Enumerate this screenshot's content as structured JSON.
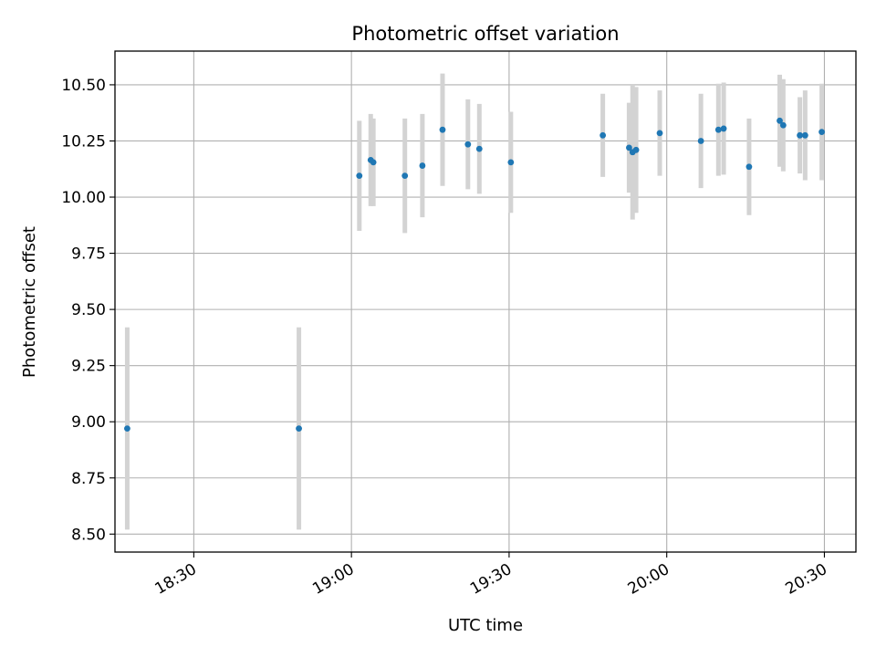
{
  "chart_data": {
    "type": "scatter",
    "title": "Photometric offset variation",
    "xlabel": "UTC time",
    "ylabel": "Photometric offset",
    "x_ticks": [
      "18:30",
      "19:00",
      "19:30",
      "20:00",
      "20:30"
    ],
    "y_ticks": [
      "8.50",
      "8.75",
      "9.00",
      "9.25",
      "9.50",
      "9.75",
      "10.00",
      "10.25",
      "10.50"
    ],
    "grid": true,
    "xlim": [
      "18:15",
      "20:36"
    ],
    "ylim": [
      8.42,
      10.65
    ],
    "marker_color": "#1f77b4",
    "errorbar_color": "#d3d3d3",
    "points": [
      {
        "x": "18:17:20",
        "y": 8.97,
        "err": 0.45
      },
      {
        "x": "18:50:00",
        "y": 8.97,
        "err": 0.45
      },
      {
        "x": "19:01:30",
        "y": 10.095,
        "err": 0.245
      },
      {
        "x": "19:03:40",
        "y": 10.165,
        "err": 0.205
      },
      {
        "x": "19:04:10",
        "y": 10.155,
        "err": 0.195
      },
      {
        "x": "19:10:10",
        "y": 10.095,
        "err": 0.255
      },
      {
        "x": "19:13:30",
        "y": 10.14,
        "err": 0.23
      },
      {
        "x": "19:17:20",
        "y": 10.3,
        "err": 0.25
      },
      {
        "x": "19:22:10",
        "y": 10.235,
        "err": 0.2
      },
      {
        "x": "19:24:20",
        "y": 10.215,
        "err": 0.2
      },
      {
        "x": "19:30:20",
        "y": 10.155,
        "err": 0.225
      },
      {
        "x": "19:47:50",
        "y": 10.275,
        "err": 0.185
      },
      {
        "x": "19:52:50",
        "y": 10.22,
        "err": 0.2
      },
      {
        "x": "19:53:30",
        "y": 10.2,
        "err": 0.3
      },
      {
        "x": "19:54:10",
        "y": 10.21,
        "err": 0.28
      },
      {
        "x": "19:58:40",
        "y": 10.285,
        "err": 0.19
      },
      {
        "x": "20:06:30",
        "y": 10.25,
        "err": 0.21
      },
      {
        "x": "20:09:50",
        "y": 10.3,
        "err": 0.205
      },
      {
        "x": "20:10:50",
        "y": 10.305,
        "err": 0.205
      },
      {
        "x": "20:15:40",
        "y": 10.135,
        "err": 0.215
      },
      {
        "x": "20:21:30",
        "y": 10.34,
        "err": 0.205
      },
      {
        "x": "20:22:10",
        "y": 10.32,
        "err": 0.205
      },
      {
        "x": "20:25:20",
        "y": 10.275,
        "err": 0.17
      },
      {
        "x": "20:26:20",
        "y": 10.275,
        "err": 0.2
      },
      {
        "x": "20:29:30",
        "y": 10.29,
        "err": 0.215
      }
    ]
  }
}
